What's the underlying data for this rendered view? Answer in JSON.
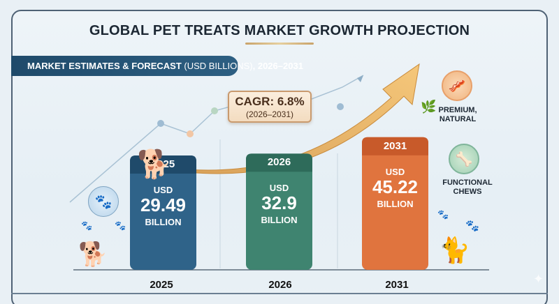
{
  "chart_data": {
    "type": "bar",
    "title": "GLOBAL PET TREATS MARKET GROWTH PROJECTION",
    "subtitle": {
      "bold_prefix": "MARKET ESTIMATES & FORECAST",
      "light_middle": " (USD BILLIONS)",
      "bold_suffix": ", 2026–2031"
    },
    "categories": [
      "2025",
      "2026",
      "2031"
    ],
    "values": [
      29.49,
      32.9,
      45.22
    ],
    "unit_prefix": "USD",
    "unit_suffix": "BILLION",
    "value_labels": [
      "29.49",
      "32.9",
      "45.22"
    ],
    "bar_colors": [
      "#2f6389",
      "#3f8470",
      "#e0743e"
    ],
    "bar_header_colors": [
      "#1f4a6a",
      "#2e6b5a",
      "#c85a2a"
    ],
    "xlabel": "",
    "ylabel": "",
    "ylim": [
      0,
      50
    ],
    "grid": false,
    "annotation": {
      "cagr_label": "CAGR: 6.8%",
      "cagr_period": "(2026–2031)",
      "cagr_value_percent": 6.8
    },
    "callouts": [
      {
        "label_line1": "PREMIUM,",
        "label_line2": "NATURAL",
        "icon": "jerky-treat-icon"
      },
      {
        "label_line1": "FUNCTIONAL",
        "label_line2": "CHEWS",
        "icon": "bone-treat-icon"
      }
    ]
  },
  "icons": {
    "paw": "🐾",
    "dog": "🐕",
    "cat": "🐈",
    "leaf": "🌿",
    "bone": "🦴",
    "jerky": "🥓",
    "sparkle": "✦"
  }
}
